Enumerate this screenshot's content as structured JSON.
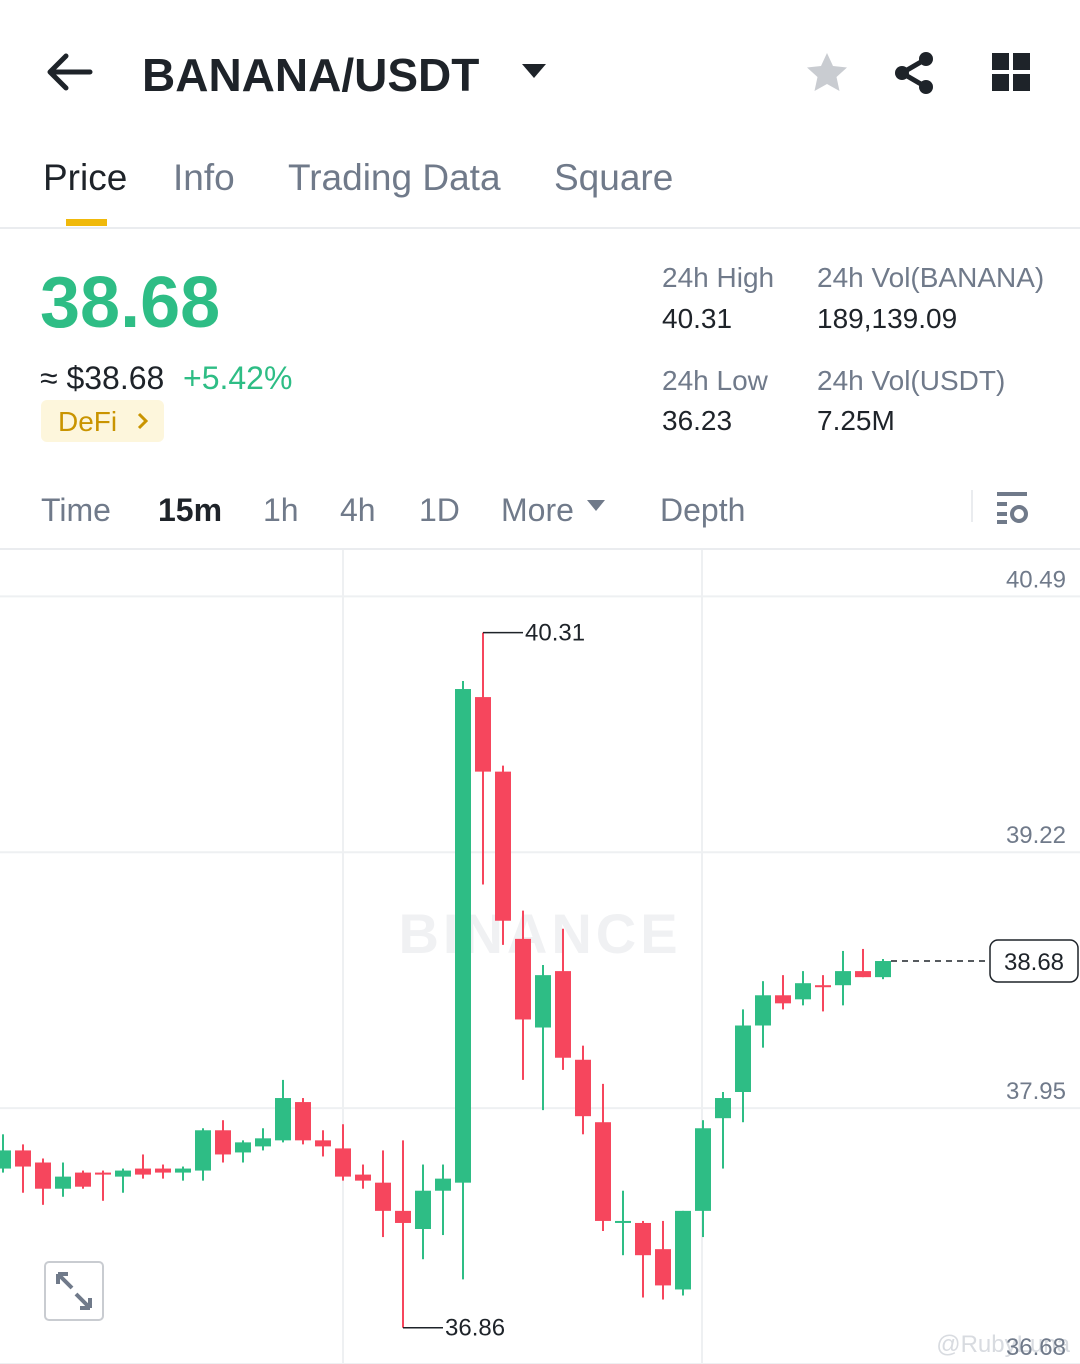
{
  "header": {
    "title": "BANANA/USDT"
  },
  "tabs": [
    "Price",
    "Info",
    "Trading Data",
    "Square"
  ],
  "price": {
    "last": "38.68",
    "usd": "≈ $38.68",
    "change": "+5.42%",
    "tag": "DeFi"
  },
  "stats": [
    {
      "label": "24h High",
      "value": "40.31"
    },
    {
      "label": "24h Vol(BANANA)",
      "value": "189,139.09"
    },
    {
      "label": "24h Low",
      "value": "36.23"
    },
    {
      "label": "24h Vol(USDT)",
      "value": "7.25M"
    }
  ],
  "intervals": [
    "Time",
    "15m",
    "1h",
    "4h",
    "1D",
    "More",
    "Depth"
  ],
  "watermarks": [
    "BINANCE",
    "@RubyLuna"
  ],
  "chart_data": {
    "type": "candlestick",
    "up_color": "#2ebd85",
    "down_color": "#f6465d",
    "ylim": [
      36.68,
      40.72
    ],
    "yticks": [
      36.68,
      37.95,
      39.22,
      40.49
    ],
    "grid": true,
    "last_price": 38.68,
    "high_label": 40.31,
    "low_label": 36.86,
    "open": [
      37.65,
      37.74,
      37.68,
      37.55,
      37.63,
      37.63,
      37.61,
      37.65,
      37.65,
      37.63,
      37.64,
      37.84,
      37.73,
      37.76,
      37.79,
      37.98,
      37.79,
      37.75,
      37.62,
      37.58,
      37.44,
      37.35,
      37.54,
      37.58,
      39.99,
      39.62,
      38.79,
      38.35,
      38.63,
      38.19,
      37.88,
      37.38,
      37.38,
      37.25,
      37.05,
      37.44,
      37.9,
      38.03,
      38.36,
      38.51,
      38.49,
      38.56,
      38.56,
      38.63,
      38.6
    ],
    "high": [
      37.82,
      37.77,
      37.7,
      37.68,
      37.64,
      37.64,
      37.65,
      37.72,
      37.67,
      37.66,
      37.85,
      37.89,
      37.79,
      37.85,
      38.09,
      38.0,
      37.84,
      37.87,
      37.67,
      37.74,
      37.79,
      37.67,
      37.67,
      40.07,
      40.31,
      39.65,
      38.93,
      38.66,
      38.84,
      38.26,
      38.07,
      37.54,
      37.39,
      37.39,
      37.44,
      37.89,
      38.03,
      38.44,
      38.58,
      38.61,
      38.63,
      38.61,
      38.73,
      38.74,
      38.69
    ],
    "low": [
      37.63,
      37.53,
      37.47,
      37.51,
      37.55,
      37.49,
      37.53,
      37.6,
      37.6,
      37.59,
      37.59,
      37.68,
      37.68,
      37.74,
      37.78,
      37.77,
      37.71,
      37.59,
      37.55,
      37.31,
      36.86,
      37.2,
      37.32,
      37.1,
      39.06,
      38.76,
      38.09,
      37.94,
      38.14,
      37.82,
      37.34,
      37.22,
      37.01,
      37.0,
      37.02,
      37.31,
      37.65,
      37.88,
      38.25,
      38.44,
      38.46,
      38.43,
      38.46,
      38.6,
      38.59
    ],
    "close": [
      37.74,
      37.66,
      37.55,
      37.61,
      37.56,
      37.62,
      37.64,
      37.62,
      37.63,
      37.65,
      37.84,
      37.72,
      37.78,
      37.8,
      38.0,
      37.79,
      37.76,
      37.61,
      37.59,
      37.44,
      37.38,
      37.54,
      37.6,
      40.03,
      39.62,
      38.88,
      38.39,
      38.61,
      38.2,
      37.91,
      37.39,
      37.39,
      37.22,
      37.07,
      37.44,
      37.85,
      38.0,
      38.36,
      38.51,
      38.47,
      38.57,
      38.55,
      38.63,
      38.6,
      38.68
    ]
  }
}
